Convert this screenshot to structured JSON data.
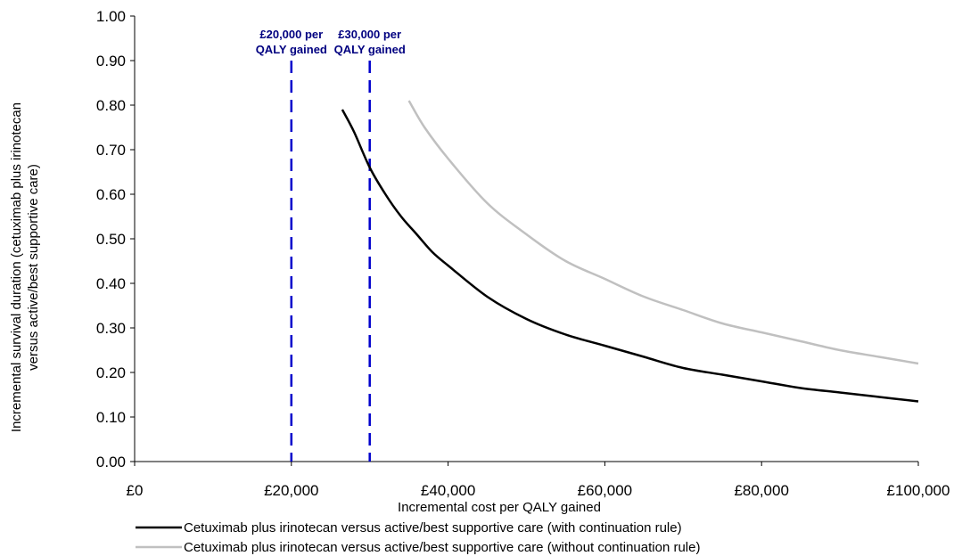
{
  "chart_data": {
    "type": "line",
    "xlabel": "Incremental cost per QALY gained",
    "ylabel_line1": "Incremental survival duration (cetuximab plus irinotecan",
    "ylabel_line2": "versus active/best supportive care)",
    "xlim": [
      0,
      100000
    ],
    "ylim": [
      0,
      1.0
    ],
    "x_ticks": [
      0,
      20000,
      40000,
      60000,
      80000,
      100000
    ],
    "x_tick_labels": [
      "£0",
      "£20,000",
      "£40,000",
      "£60,000",
      "£80,000",
      "£100,000"
    ],
    "y_ticks": [
      0,
      0.1,
      0.2,
      0.3,
      0.4,
      0.5,
      0.6,
      0.7,
      0.8,
      0.9,
      1.0
    ],
    "y_tick_labels": [
      "0.00",
      "0.10",
      "0.20",
      "0.30",
      "0.40",
      "0.50",
      "0.60",
      "0.70",
      "0.80",
      "0.90",
      "1.00"
    ],
    "grid": false,
    "legend_position": "bottom",
    "series": [
      {
        "name": "Cetuximab plus irinotecan versus active/best supportive care (with continuation rule)",
        "color": "#000000",
        "x": [
          26500,
          28000,
          30000,
          32000,
          34000,
          36000,
          38000,
          40000,
          45000,
          50000,
          55000,
          60000,
          65000,
          70000,
          75000,
          80000,
          85000,
          90000,
          95000,
          100000
        ],
        "y": [
          0.79,
          0.74,
          0.66,
          0.6,
          0.55,
          0.51,
          0.47,
          0.44,
          0.37,
          0.32,
          0.285,
          0.26,
          0.235,
          0.21,
          0.195,
          0.18,
          0.165,
          0.155,
          0.145,
          0.135
        ]
      },
      {
        "name": "Cetuximab plus irinotecan versus active/best supportive care (without continuation rule)",
        "color": "#c0c0c0",
        "x": [
          35000,
          37000,
          40000,
          45000,
          50000,
          55000,
          60000,
          65000,
          70000,
          75000,
          80000,
          85000,
          90000,
          95000,
          100000
        ],
        "y": [
          0.81,
          0.75,
          0.68,
          0.58,
          0.51,
          0.45,
          0.41,
          0.37,
          0.34,
          0.31,
          0.29,
          0.27,
          0.25,
          0.235,
          0.22
        ]
      }
    ],
    "threshold_lines": [
      {
        "x": 20000,
        "label_line1": "£20,000 per",
        "label_line2": "QALY  gained",
        "color": "#0000cc"
      },
      {
        "x": 30000,
        "label_line1": "£30,000 per",
        "label_line2": "QALY gained",
        "color": "#0000cc"
      }
    ],
    "annotation_color": "#000080"
  }
}
